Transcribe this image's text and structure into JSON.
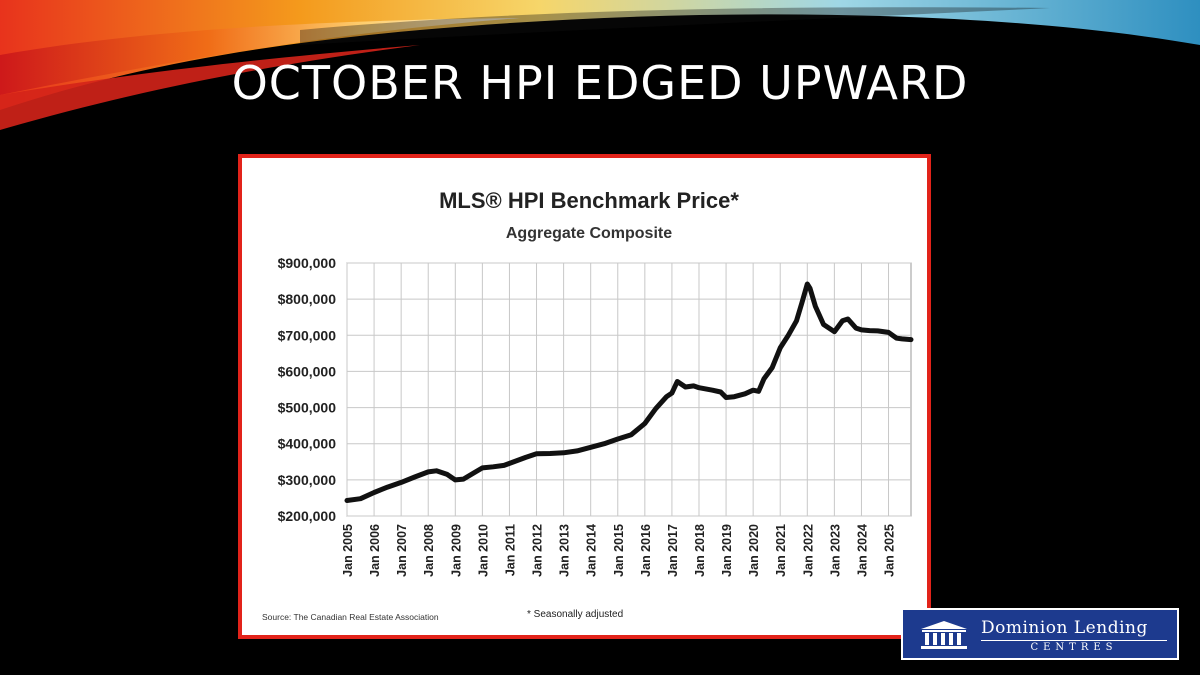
{
  "slide": {
    "title": "OCTOBER HPI EDGED UPWARD"
  },
  "logo": {
    "name": "Dominion Lending",
    "sub": "CENTRES",
    "icon": "pillars-building-icon",
    "background": "#1d3a8e"
  },
  "colors": {
    "frame": "#e2231a",
    "line": "#111111",
    "grid": "#c8c8c8"
  },
  "chart_data": {
    "type": "line",
    "title": "MLS® HPI Benchmark Price*",
    "subtitle": "Aggregate Composite",
    "xlabel": "",
    "ylabel": "",
    "ylim": [
      200000,
      900000
    ],
    "yticks": [
      200000,
      300000,
      400000,
      500000,
      600000,
      700000,
      800000,
      900000
    ],
    "ytick_labels": [
      "$200,000",
      "$300,000",
      "$400,000",
      "$500,000",
      "$600,000",
      "$700,000",
      "$800,000",
      "$900,000"
    ],
    "xlim": [
      2005.0,
      2025.83
    ],
    "xticks": [
      2005,
      2006,
      2007,
      2008,
      2009,
      2010,
      2011,
      2012,
      2013,
      2014,
      2015,
      2016,
      2017,
      2018,
      2019,
      2020,
      2021,
      2022,
      2023,
      2024,
      2025
    ],
    "xtick_labels": [
      "Jan 2005",
      "Jan 2006",
      "Jan 2007",
      "Jan 2008",
      "Jan 2009",
      "Jan 2010",
      "Jan 2011",
      "Jan 2012",
      "Jan 2013",
      "Jan 2014",
      "Jan 2015",
      "Jan 2016",
      "Jan 2017",
      "Jan 2018",
      "Jan 2019",
      "Jan 2020",
      "Jan 2021",
      "Jan 2022",
      "Jan 2023",
      "Jan 2024",
      "Jan 2025"
    ],
    "grid": true,
    "series": [
      {
        "x": [
          2005.0,
          2005.5,
          2006.0,
          2006.5,
          2007.0,
          2007.5,
          2008.0,
          2008.3,
          2008.7,
          2009.0,
          2009.3,
          2009.7,
          2010.0,
          2010.4,
          2010.8,
          2011.2,
          2011.6,
          2012.0,
          2012.5,
          2013.0,
          2013.5,
          2014.0,
          2014.5,
          2015.0,
          2015.5,
          2016.0,
          2016.4,
          2016.8,
          2017.0,
          2017.2,
          2017.5,
          2017.8,
          2018.0,
          2018.5,
          2018.8,
          2019.0,
          2019.3,
          2019.7,
          2020.0,
          2020.2,
          2020.4,
          2020.7,
          2021.0,
          2021.3,
          2021.6,
          2021.8,
          2022.0,
          2022.1,
          2022.3,
          2022.6,
          2023.0,
          2023.3,
          2023.5,
          2023.8,
          2024.0,
          2024.3,
          2024.6,
          2025.0,
          2025.3,
          2025.5,
          2025.83
        ],
        "values": [
          243000,
          248000,
          265000,
          280000,
          293000,
          308000,
          322000,
          325000,
          315000,
          300000,
          302000,
          320000,
          333000,
          336000,
          340000,
          351000,
          362000,
          372000,
          373000,
          375000,
          380000,
          390000,
          400000,
          413000,
          425000,
          456000,
          497000,
          530000,
          540000,
          572000,
          557000,
          560000,
          555000,
          548000,
          543000,
          528000,
          530000,
          538000,
          548000,
          545000,
          580000,
          610000,
          665000,
          700000,
          740000,
          790000,
          842000,
          830000,
          780000,
          730000,
          710000,
          740000,
          745000,
          720000,
          715000,
          713000,
          712000,
          708000,
          692000,
          690000,
          688000
        ]
      }
    ],
    "source": "Source: The Canadian Real Estate Association",
    "footnote": "* Seasonally adjusted"
  }
}
